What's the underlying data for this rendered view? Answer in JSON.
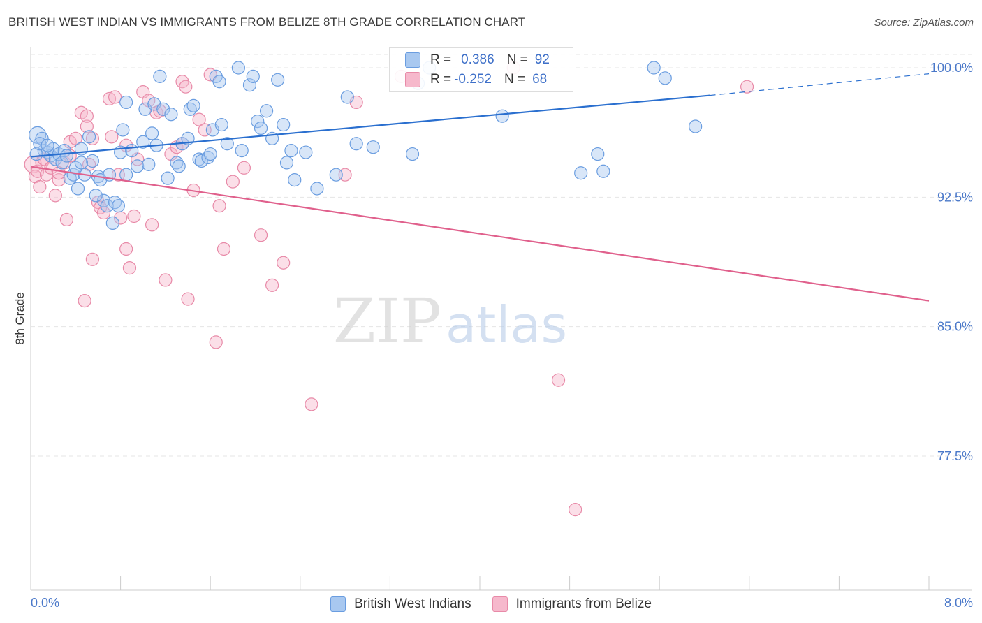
{
  "title": "BRITISH WEST INDIAN VS IMMIGRANTS FROM BELIZE 8TH GRADE CORRELATION CHART",
  "source": "Source: ZipAtlas.com",
  "watermark": {
    "zip": "ZIP",
    "atlas": "atlas"
  },
  "colors": {
    "blue_fill": "#a8c8f0",
    "blue_stroke": "#6a9de0",
    "blue_line": "#2a6fcf",
    "pink_fill": "#f6b8cc",
    "pink_stroke": "#e88aa8",
    "pink_line": "#e0608c",
    "grid": "#e5e5e5",
    "tick_text": "#4a78c9"
  },
  "legend_top": [
    {
      "r_label": "R =",
      "r_value": "0.386",
      "n_label": "N =",
      "n_value": "92"
    },
    {
      "r_label": "R =",
      "r_value": "-0.252",
      "n_label": "N =",
      "n_value": "68"
    }
  ],
  "chart_data": {
    "type": "scatter",
    "title": "BRITISH WEST INDIAN VS IMMIGRANTS FROM BELIZE 8TH GRADE CORRELATION CHART",
    "xlabel": "",
    "ylabel": "8th Grade",
    "xlim": [
      0,
      8
    ],
    "ylim": [
      70.3,
      100.9
    ],
    "x_tick_labels": [
      "0.0%",
      "8.0%"
    ],
    "y_ticks": [
      77.5,
      85.0,
      92.5,
      100.0
    ],
    "y_tick_labels": [
      "77.5%",
      "85.0%",
      "92.5%",
      "100.0%"
    ],
    "grid": "horizontal dashed",
    "legend_placement": "bottom",
    "series": [
      {
        "name": "British West Indians",
        "r": 0.386,
        "n": 92,
        "trend": {
          "x0": 0,
          "y0": 94.84,
          "x1": 6.05,
          "y1": 98.4,
          "dash_to_x": 8.0,
          "dash_to_y": 99.65
        },
        "points": [
          [
            0.06,
            96.1
          ],
          [
            0.1,
            95.9
          ],
          [
            0.12,
            95.2
          ],
          [
            0.15,
            95.1
          ],
          [
            0.18,
            94.9
          ],
          [
            0.2,
            95.3
          ],
          [
            0.22,
            94.7
          ],
          [
            0.25,
            95.0
          ],
          [
            0.28,
            94.5
          ],
          [
            0.3,
            95.2
          ],
          [
            0.05,
            95.0
          ],
          [
            0.08,
            95.6
          ],
          [
            0.35,
            93.6
          ],
          [
            0.38,
            93.8
          ],
          [
            0.42,
            93.0
          ],
          [
            0.45,
            95.3
          ],
          [
            0.48,
            93.8
          ],
          [
            0.52,
            96.0
          ],
          [
            0.55,
            94.6
          ],
          [
            0.6,
            93.7
          ],
          [
            0.62,
            93.5
          ],
          [
            0.65,
            92.3
          ],
          [
            0.68,
            92.0
          ],
          [
            0.7,
            93.8
          ],
          [
            0.75,
            92.2
          ],
          [
            0.8,
            95.1
          ],
          [
            0.82,
            96.4
          ],
          [
            0.85,
            98.0
          ],
          [
            0.9,
            95.2
          ],
          [
            0.95,
            94.3
          ],
          [
            1.0,
            95.7
          ],
          [
            1.02,
            97.6
          ],
          [
            1.05,
            94.4
          ],
          [
            1.1,
            97.9
          ],
          [
            1.12,
            95.5
          ],
          [
            1.15,
            99.5
          ],
          [
            1.18,
            97.6
          ],
          [
            1.22,
            93.6
          ],
          [
            1.25,
            97.3
          ],
          [
            1.3,
            94.5
          ],
          [
            1.32,
            94.3
          ],
          [
            1.35,
            95.6
          ],
          [
            1.4,
            95.9
          ],
          [
            1.42,
            97.6
          ],
          [
            1.45,
            97.8
          ],
          [
            1.5,
            94.7
          ],
          [
            1.52,
            94.6
          ],
          [
            1.58,
            94.8
          ],
          [
            1.6,
            95.0
          ],
          [
            1.62,
            96.4
          ],
          [
            1.65,
            99.5
          ],
          [
            1.68,
            99.2
          ],
          [
            1.7,
            96.7
          ],
          [
            1.75,
            95.6
          ],
          [
            1.85,
            100.0
          ],
          [
            1.88,
            95.2
          ],
          [
            1.95,
            99.0
          ],
          [
            1.98,
            99.5
          ],
          [
            2.02,
            96.9
          ],
          [
            2.05,
            96.5
          ],
          [
            2.1,
            97.5
          ],
          [
            2.15,
            95.9
          ],
          [
            2.2,
            99.3
          ],
          [
            2.25,
            96.7
          ],
          [
            2.28,
            94.5
          ],
          [
            2.32,
            95.2
          ],
          [
            2.35,
            93.5
          ],
          [
            2.45,
            95.1
          ],
          [
            2.55,
            93.0
          ],
          [
            2.72,
            93.8
          ],
          [
            2.82,
            98.3
          ],
          [
            2.9,
            95.6
          ],
          [
            3.05,
            95.4
          ],
          [
            3.4,
            95.0
          ],
          [
            3.45,
            99.1
          ],
          [
            3.55,
            100.0
          ],
          [
            4.2,
            97.2
          ],
          [
            4.9,
            93.9
          ],
          [
            5.05,
            95.0
          ],
          [
            5.1,
            94.0
          ],
          [
            5.55,
            100.0
          ],
          [
            5.65,
            99.4
          ],
          [
            5.92,
            96.6
          ],
          [
            0.58,
            92.6
          ],
          [
            0.78,
            92.0
          ],
          [
            0.73,
            91.0
          ],
          [
            0.4,
            94.2
          ],
          [
            0.32,
            94.9
          ],
          [
            0.45,
            94.5
          ],
          [
            0.85,
            93.8
          ],
          [
            1.08,
            96.2
          ],
          [
            0.15,
            95.5
          ]
        ]
      },
      {
        "name": "Immigrants from Belize",
        "r": -0.252,
        "n": 68,
        "trend": {
          "x0": 0,
          "y0": 94.27,
          "x1": 8.0,
          "y1": 86.5
        },
        "points": [
          [
            0.02,
            94.4
          ],
          [
            0.04,
            93.7
          ],
          [
            0.06,
            94.0
          ],
          [
            0.08,
            93.1
          ],
          [
            0.1,
            94.5
          ],
          [
            0.12,
            94.7
          ],
          [
            0.14,
            93.8
          ],
          [
            0.18,
            94.2
          ],
          [
            0.22,
            92.6
          ],
          [
            0.25,
            93.5
          ],
          [
            0.3,
            94.5
          ],
          [
            0.35,
            95.7
          ],
          [
            0.4,
            95.9
          ],
          [
            0.45,
            97.4
          ],
          [
            0.5,
            96.6
          ],
          [
            0.55,
            95.9
          ],
          [
            0.6,
            92.2
          ],
          [
            0.62,
            91.9
          ],
          [
            0.65,
            91.6
          ],
          [
            0.7,
            98.2
          ],
          [
            0.75,
            98.3
          ],
          [
            0.78,
            93.8
          ],
          [
            0.8,
            91.3
          ],
          [
            0.85,
            89.5
          ],
          [
            0.88,
            88.4
          ],
          [
            0.92,
            91.4
          ],
          [
            0.95,
            94.7
          ],
          [
            1.0,
            98.6
          ],
          [
            1.05,
            98.1
          ],
          [
            1.08,
            90.9
          ],
          [
            1.12,
            97.4
          ],
          [
            1.15,
            97.5
          ],
          [
            1.2,
            87.7
          ],
          [
            1.25,
            95.0
          ],
          [
            1.3,
            95.4
          ],
          [
            1.35,
            95.6
          ],
          [
            1.4,
            86.6
          ],
          [
            1.45,
            92.9
          ],
          [
            1.5,
            97.0
          ],
          [
            1.55,
            96.4
          ],
          [
            1.6,
            99.6
          ],
          [
            1.65,
            84.1
          ],
          [
            1.68,
            92.0
          ],
          [
            1.72,
            89.5
          ],
          [
            1.8,
            93.4
          ],
          [
            1.9,
            94.2
          ],
          [
            2.05,
            90.3
          ],
          [
            2.15,
            87.4
          ],
          [
            2.25,
            88.7
          ],
          [
            2.5,
            80.5
          ],
          [
            2.8,
            93.8
          ],
          [
            2.9,
            98.0
          ],
          [
            3.3,
            99.5
          ],
          [
            4.3,
            100.0
          ],
          [
            4.7,
            81.9
          ],
          [
            4.85,
            74.4
          ],
          [
            6.38,
            98.9
          ],
          [
            0.5,
            97.2
          ],
          [
            0.25,
            93.9
          ],
          [
            0.35,
            94.9
          ],
          [
            0.52,
            94.4
          ],
          [
            0.72,
            96.0
          ],
          [
            0.85,
            95.5
          ],
          [
            0.32,
            91.2
          ],
          [
            0.55,
            88.9
          ],
          [
            0.48,
            86.5
          ],
          [
            1.35,
            99.2
          ],
          [
            1.38,
            98.9
          ]
        ]
      }
    ]
  }
}
